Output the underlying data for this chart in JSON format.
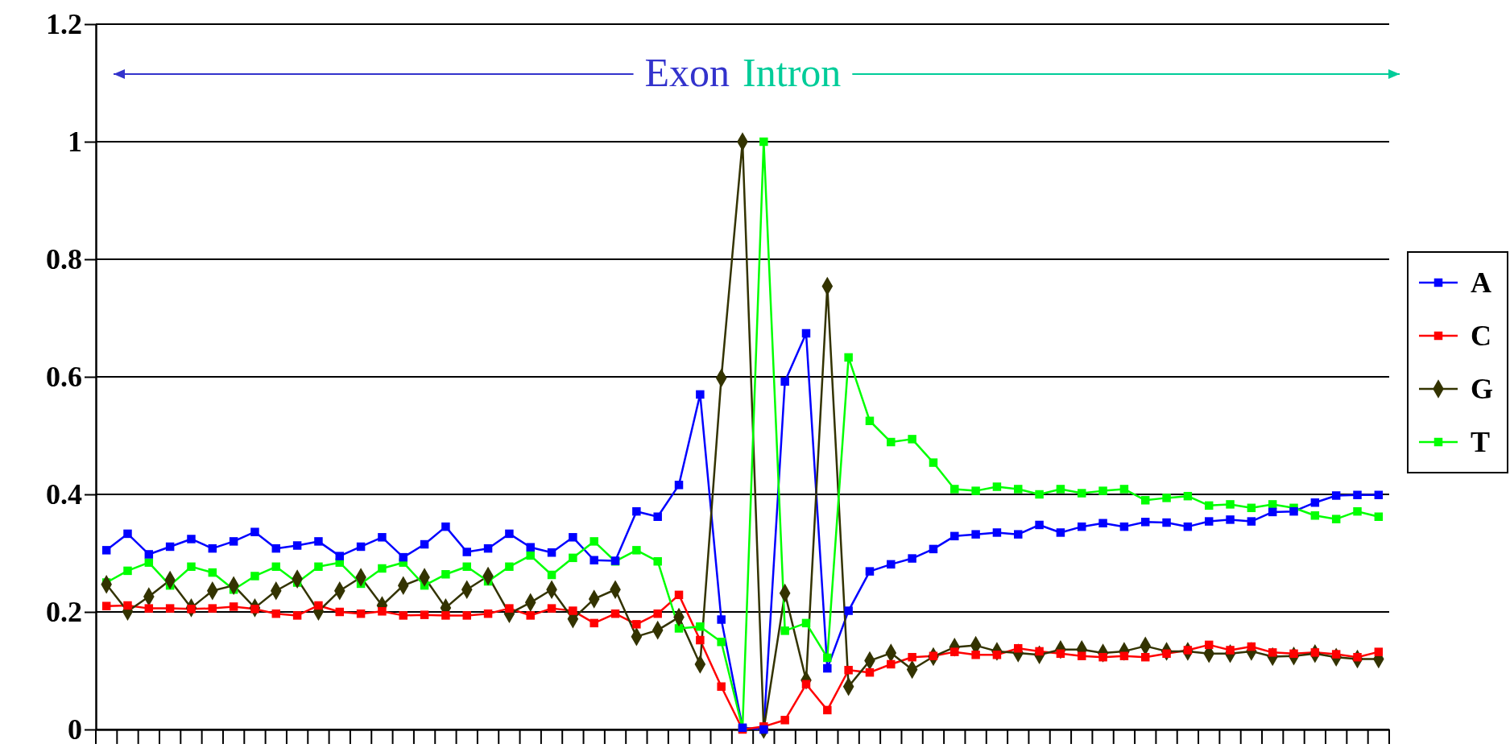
{
  "chart_data": {
    "type": "line",
    "categories": [
      null,
      null,
      null,
      null,
      null,
      null,
      null,
      null,
      null,
      null,
      null,
      null,
      null,
      null,
      null,
      null,
      null,
      null,
      null,
      null,
      null,
      null,
      null,
      null,
      null,
      null,
      null,
      null,
      null,
      null,
      null,
      null,
      null,
      null,
      null,
      null,
      null,
      null,
      null,
      null,
      null,
      null,
      null,
      null,
      null,
      null,
      null,
      null,
      null,
      null,
      null,
      null,
      null,
      null,
      null,
      null,
      null,
      null,
      null,
      null,
      null
    ],
    "series": [
      {
        "name": "A",
        "color": "#0000ff",
        "marker": "square",
        "values": [
          0.305,
          0.333,
          0.298,
          0.311,
          0.324,
          0.308,
          0.32,
          0.336,
          0.308,
          0.313,
          0.32,
          0.295,
          0.311,
          0.327,
          0.293,
          0.315,
          0.345,
          0.302,
          0.308,
          0.333,
          0.31,
          0.301,
          0.327,
          0.288,
          0.287,
          0.371,
          0.362,
          0.416,
          0.57,
          0.187,
          0.003,
          0.0,
          0.592,
          0.674,
          0.104,
          0.202,
          0.269,
          0.281,
          0.291,
          0.307,
          0.329,
          0.332,
          0.335,
          0.332,
          0.348,
          0.335,
          0.345,
          0.351,
          0.345,
          0.353,
          0.352,
          0.345,
          0.354,
          0.357,
          0.354,
          0.37,
          0.371,
          0.386,
          0.398,
          0.399,
          0.399
        ]
      },
      {
        "name": "C",
        "color": "#ff0000",
        "marker": "square",
        "values": [
          0.21,
          0.211,
          0.206,
          0.206,
          0.205,
          0.206,
          0.209,
          0.205,
          0.197,
          0.194,
          0.211,
          0.2,
          0.197,
          0.201,
          0.194,
          0.195,
          0.194,
          0.194,
          0.197,
          0.206,
          0.194,
          0.206,
          0.202,
          0.181,
          0.197,
          0.179,
          0.197,
          0.229,
          0.152,
          0.073,
          0.0,
          0.005,
          0.016,
          0.077,
          0.033,
          0.101,
          0.097,
          0.111,
          0.123,
          0.125,
          0.132,
          0.127,
          0.127,
          0.138,
          0.133,
          0.129,
          0.125,
          0.123,
          0.125,
          0.123,
          0.129,
          0.135,
          0.144,
          0.135,
          0.141,
          0.131,
          0.129,
          0.131,
          0.128,
          0.123,
          0.132
        ]
      },
      {
        "name": "G",
        "color": "#333300",
        "marker": "diamond",
        "values": [
          0.247,
          0.201,
          0.226,
          0.254,
          0.207,
          0.236,
          0.245,
          0.207,
          0.236,
          0.256,
          0.201,
          0.236,
          0.259,
          0.211,
          0.245,
          0.259,
          0.207,
          0.238,
          0.261,
          0.197,
          0.216,
          0.238,
          0.188,
          0.222,
          0.238,
          0.158,
          0.169,
          0.191,
          0.111,
          0.598,
          1.0,
          0.0,
          0.232,
          0.084,
          0.754,
          0.073,
          0.117,
          0.13,
          0.102,
          0.124,
          0.14,
          0.143,
          0.133,
          0.13,
          0.127,
          0.136,
          0.136,
          0.13,
          0.133,
          0.142,
          0.133,
          0.133,
          0.129,
          0.129,
          0.133,
          0.124,
          0.125,
          0.129,
          0.123,
          0.12,
          0.12
        ]
      },
      {
        "name": "T",
        "color": "#00ff00",
        "marker": "square",
        "values": [
          0.25,
          0.27,
          0.284,
          0.245,
          0.277,
          0.267,
          0.238,
          0.261,
          0.277,
          0.25,
          0.277,
          0.284,
          0.248,
          0.274,
          0.284,
          0.245,
          0.264,
          0.277,
          0.252,
          0.277,
          0.296,
          0.263,
          0.292,
          0.32,
          0.286,
          0.305,
          0.286,
          0.172,
          0.175,
          0.149,
          0.002,
          1.0,
          0.168,
          0.181,
          0.122,
          0.633,
          0.525,
          0.489,
          0.494,
          0.454,
          0.409,
          0.406,
          0.413,
          0.409,
          0.4,
          0.409,
          0.402,
          0.406,
          0.409,
          0.39,
          0.394,
          0.397,
          0.381,
          0.383,
          0.377,
          0.383,
          0.377,
          0.364,
          0.358,
          0.371,
          0.362
        ]
      }
    ],
    "ylim": [
      0,
      1.2
    ],
    "yticks": [
      0,
      0.2,
      0.4,
      0.6,
      0.8,
      1,
      1.2
    ],
    "grid": "y",
    "legend": "right",
    "annotations": [
      "Exon",
      "Intron"
    ]
  }
}
